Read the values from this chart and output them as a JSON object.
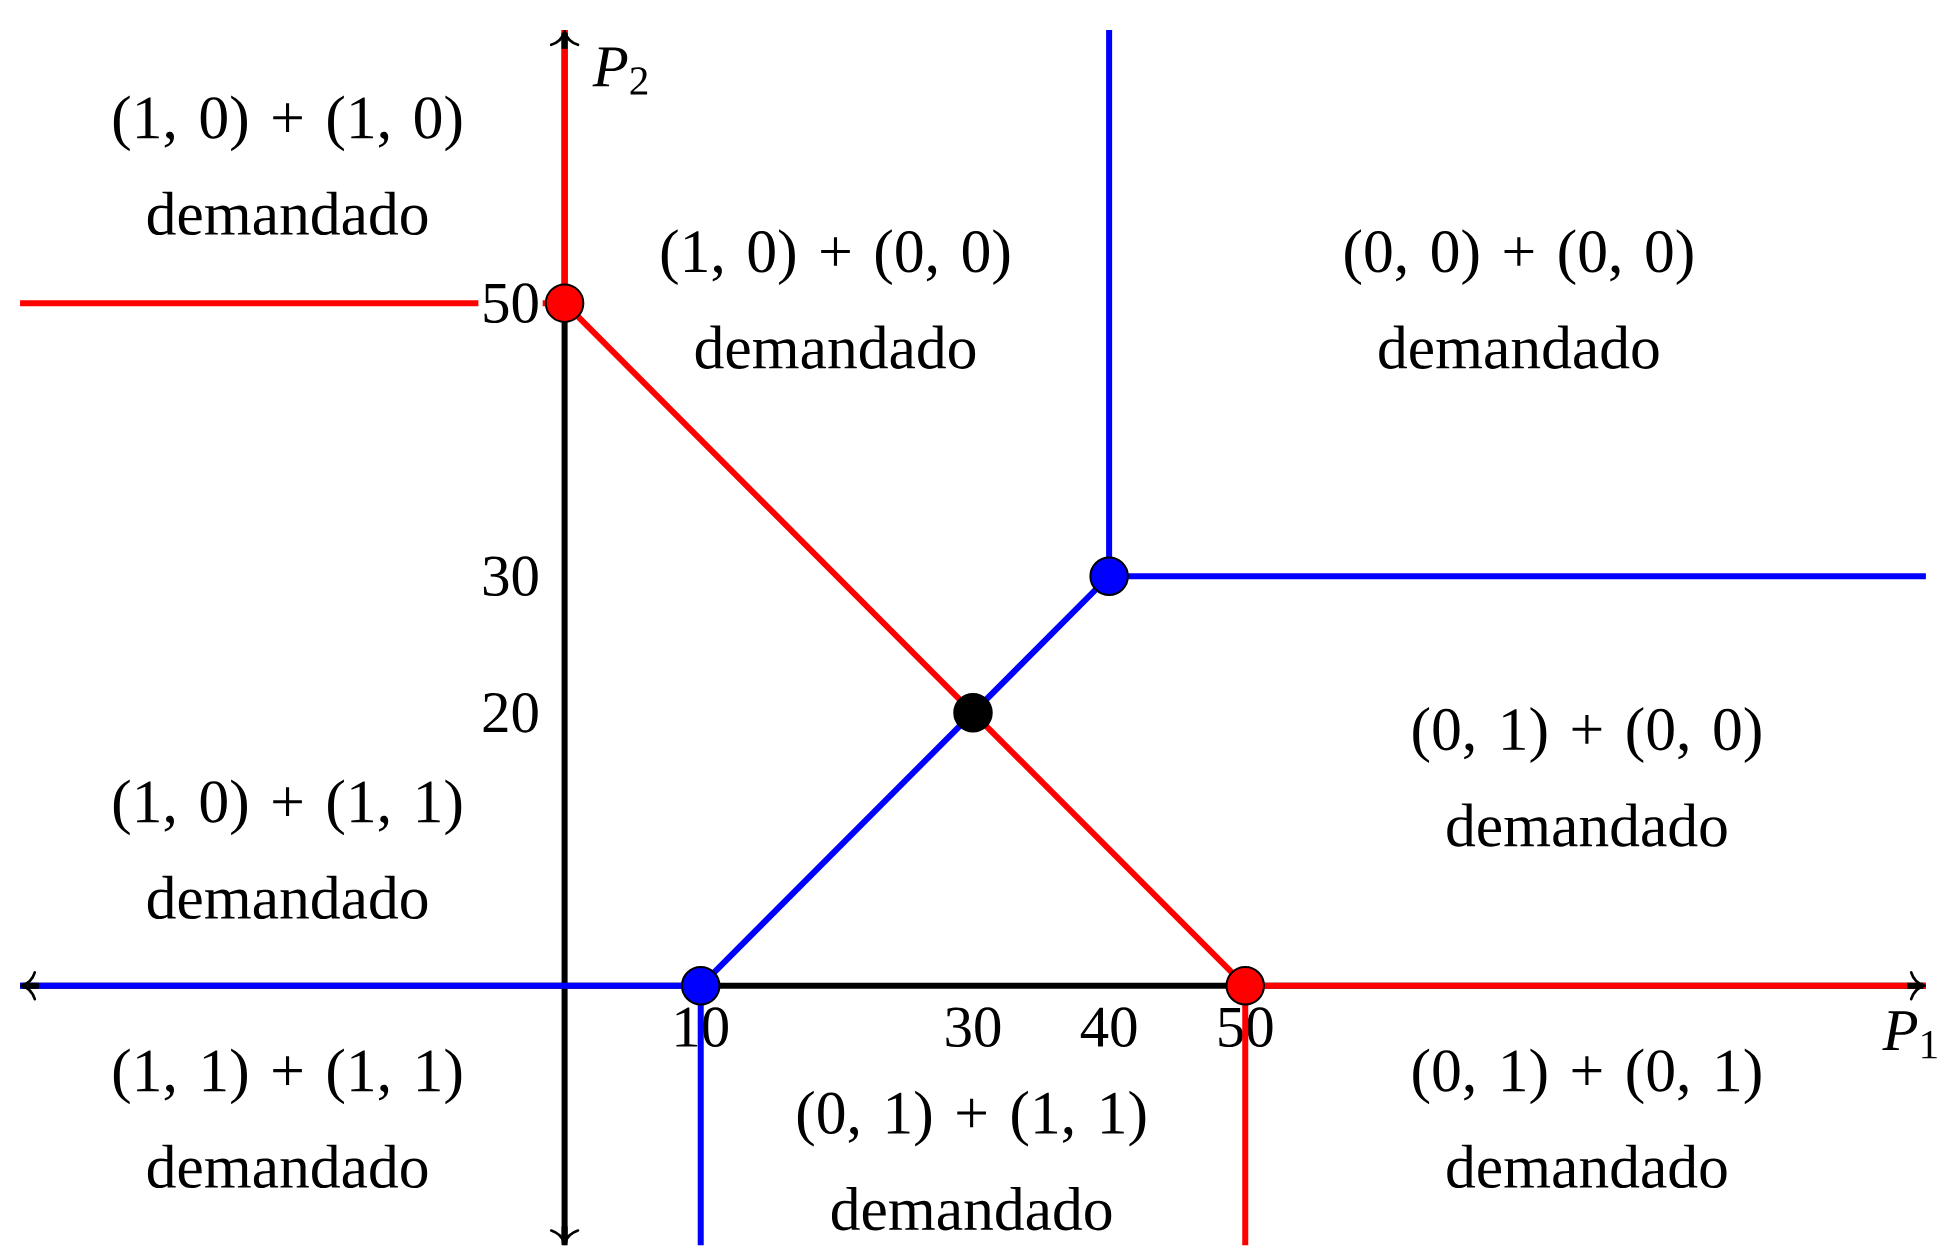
{
  "chart_data": {
    "type": "line",
    "xlabel": "*P*$_{1}$",
    "ylabel": "*P*$_{2}$",
    "xlim": [
      -40,
      100
    ],
    "ylim": [
      -19,
      70
    ],
    "xticks": [
      10,
      30,
      40,
      50
    ],
    "yticks": [
      20,
      30,
      50
    ],
    "series": [
      {
        "color": "#ff0000",
        "marker": "none",
        "x": [
          -40,
          0,
          50,
          100
        ],
        "values": [
          50,
          50,
          0,
          0
        ]
      },
      {
        "color": "#ff0000",
        "marker": "none",
        "x": [
          0,
          0
        ],
        "values": [
          50,
          70
        ]
      },
      {
        "color": "#ff0000",
        "marker": "none",
        "x": [
          50,
          50
        ],
        "values": [
          0,
          -19
        ]
      },
      {
        "color": "#0000ff",
        "marker": "none",
        "x": [
          -40,
          10,
          40,
          100
        ],
        "values": [
          0,
          0,
          30,
          30
        ]
      },
      {
        "color": "#0000ff",
        "marker": "none",
        "x": [
          40,
          40
        ],
        "values": [
          30,
          70
        ]
      },
      {
        "color": "#0000ff",
        "marker": "none",
        "x": [
          10,
          10
        ],
        "values": [
          0,
          -19
        ]
      },
      {
        "type": "scatter",
        "color": "#ff0000",
        "marker": "circle",
        "x": [
          0,
          50
        ],
        "values": [
          50,
          0
        ]
      },
      {
        "type": "scatter",
        "color": "#0000ff",
        "marker": "circle",
        "x": [
          10,
          40
        ],
        "values": [
          0,
          30
        ]
      },
      {
        "type": "scatter",
        "color": "#000000",
        "marker": "circle",
        "x": [
          30
        ],
        "values": [
          20
        ]
      }
    ],
    "annotations": [
      "(1, 0) + (1, 0) demandado",
      "(1, 0) + (0, 0) demandado",
      "(0, 0) + (0, 0) demandado",
      "(0, 1) + (0, 0) demandado",
      "(1, 0) + (1, 1) demandado",
      "(1, 1) + (1, 1) demandado",
      "(0, 1) + (1, 1) demandado",
      "(0, 1) + (0, 1) demandado"
    ]
  }
}
